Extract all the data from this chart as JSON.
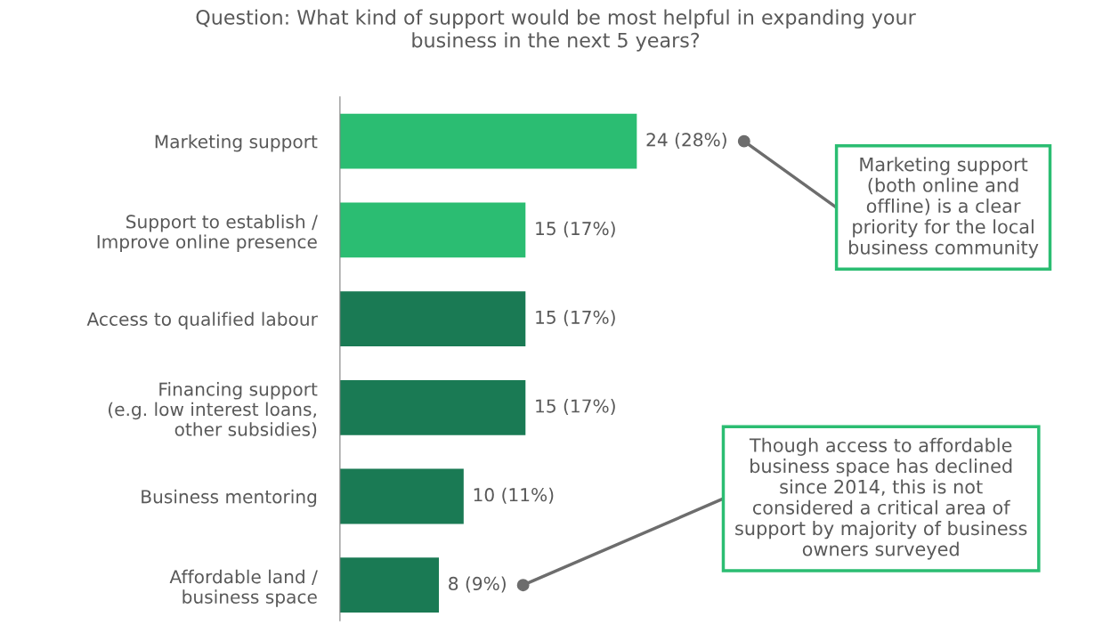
{
  "chart_data": {
    "type": "bar",
    "orientation": "horizontal",
    "title": "Question: What kind of support would be most helpful in expanding your\nbusiness in the next 5 years?",
    "categories": [
      "Marketing support",
      "Support to establish /\nImprove online presence",
      "Access to qualified labour",
      "Financing support\n(e.g. low interest loans,\nother subsidies)",
      "Business mentoring",
      "Affordable land /\nbusiness space"
    ],
    "values": [
      24,
      15,
      15,
      15,
      10,
      8
    ],
    "colors": [
      "#2bbd72",
      "#2bbd72",
      "#1a7a54",
      "#1a7a54",
      "#1a7a54",
      "#1a7a54"
    ],
    "value_labels": [
      "24 (28%)",
      "15 (17%)",
      "15 (17%)",
      "15 (17%)",
      "10 (11%)",
      "8 (9%)"
    ],
    "tick_labels": "y",
    "annotations": [
      "Marketing support\n(both online and\noffline) is a clear\npriority for the local\nbusiness community",
      "Though access to affordable\nbusiness space has declined\nsince 2014, this is not\nconsidered a critical area of\nsupport by majority of business\nowners surveyed"
    ]
  }
}
